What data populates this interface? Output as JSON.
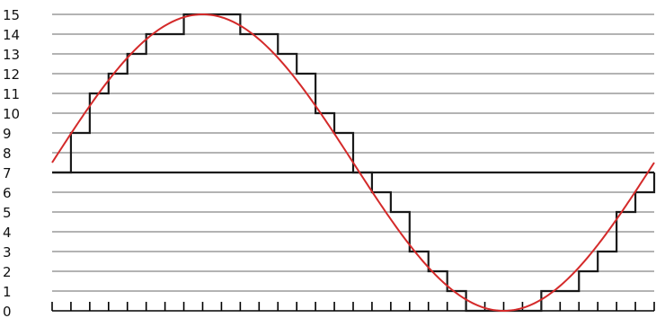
{
  "chart_data": {
    "type": "line",
    "title": "",
    "xlabel": "",
    "ylabel": "",
    "ylim": [
      0,
      15
    ],
    "xlim": [
      0,
      32
    ],
    "grid": true,
    "y_ticks": [
      "0",
      "1",
      "2",
      "3",
      "4",
      "5",
      "6",
      "7",
      "8",
      "9",
      "10",
      "11",
      "12",
      "13",
      "14",
      "15"
    ],
    "x_tick_count": 33,
    "x_tick_labels_shown": false,
    "midline_value": 7,
    "series": [
      {
        "kind": "sine",
        "color": "#d42a2a",
        "center": 7.5,
        "amplitude": 7.5,
        "period": 32,
        "phase_start_fraction": 0.0
      },
      {
        "kind": "step",
        "color": "#1a1a1a",
        "x": [
          0,
          1,
          2,
          3,
          4,
          5,
          6,
          7,
          8,
          9,
          10,
          11,
          12,
          13,
          14,
          15,
          16,
          17,
          18,
          19,
          20,
          21,
          22,
          23,
          24,
          25,
          26,
          27,
          28,
          29,
          30,
          31,
          32
        ],
        "values": [
          7,
          9,
          11,
          12,
          13,
          14,
          14,
          15,
          15,
          15,
          14,
          14,
          13,
          12,
          10,
          9,
          7,
          6,
          5,
          3,
          2,
          1,
          0,
          0,
          0,
          0,
          1,
          1,
          2,
          3,
          5,
          6,
          7
        ]
      }
    ]
  },
  "colors": {
    "grid": "#9a9a9a",
    "axis": "#000000",
    "midline": "#1a1a1a",
    "sine": "#d42a2a",
    "steps": "#1a1a1a"
  }
}
